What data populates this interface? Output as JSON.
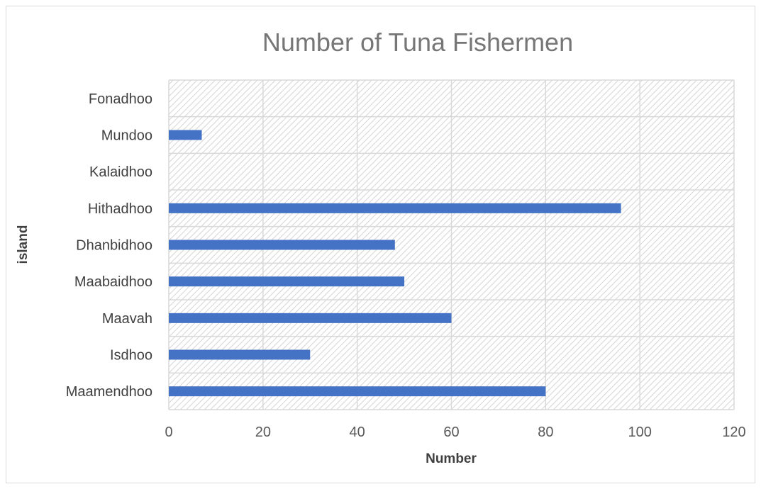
{
  "chart_data": {
    "type": "bar",
    "orientation": "horizontal",
    "title": "Number of Tuna Fishermen",
    "xlabel": "Number",
    "ylabel": "island",
    "categories": [
      "Maamendhoo",
      "Isdhoo",
      "Maavah",
      "Maabaidhoo",
      "Dhanbidhoo",
      "Hithadhoo",
      "Kalaidhoo",
      "Mundoo",
      "Fonadhoo"
    ],
    "values": [
      80,
      30,
      60,
      50,
      48,
      96,
      0,
      7,
      0
    ],
    "xlim": [
      0,
      120
    ],
    "xticks": [
      0,
      20,
      40,
      60,
      80,
      100,
      120
    ],
    "grid": true,
    "bar_color": "#4472C4",
    "legend": "none"
  }
}
